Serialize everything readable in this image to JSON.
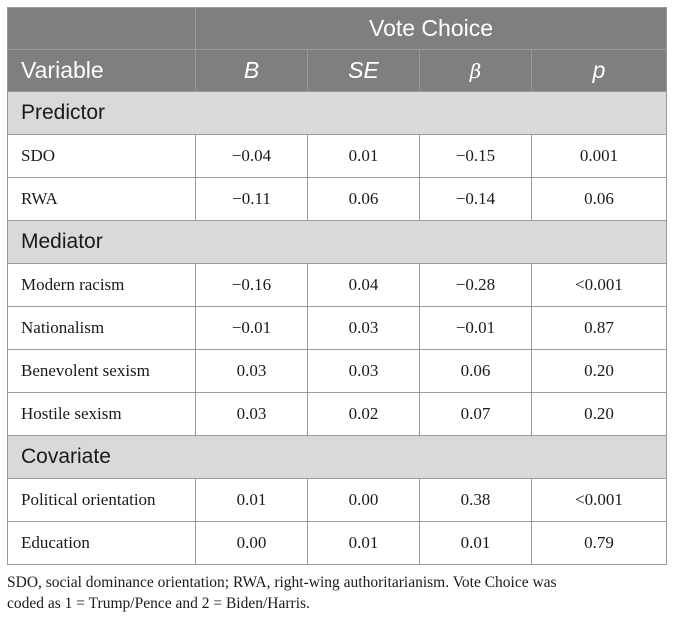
{
  "table": {
    "group_header": "Vote Choice",
    "columns": {
      "variable": "Variable",
      "b": "B",
      "se": "SE",
      "beta": "β",
      "p": "p"
    },
    "sections": [
      {
        "title": "Predictor",
        "rows": [
          {
            "label": "SDO",
            "b": "−0.04",
            "se": "0.01",
            "beta": "−0.15",
            "p": "0.001"
          },
          {
            "label": "RWA",
            "b": "−0.11",
            "se": "0.06",
            "beta": "−0.14",
            "p": "0.06"
          }
        ]
      },
      {
        "title": "Mediator",
        "rows": [
          {
            "label": "Modern racism",
            "b": "−0.16",
            "se": "0.04",
            "beta": "−0.28",
            "p": "<0.001"
          },
          {
            "label": "Nationalism",
            "b": "−0.01",
            "se": "0.03",
            "beta": "−0.01",
            "p": "0.87"
          },
          {
            "label": "Benevolent sexism",
            "b": "0.03",
            "se": "0.03",
            "beta": "0.06",
            "p": "0.20"
          },
          {
            "label": "Hostile sexism",
            "b": "0.03",
            "se": "0.02",
            "beta": "0.07",
            "p": "0.20"
          }
        ]
      },
      {
        "title": "Covariate",
        "rows": [
          {
            "label": "Political orientation",
            "b": "0.01",
            "se": "0.00",
            "beta": "0.38",
            "p": "<0.001"
          },
          {
            "label": "Education",
            "b": "0.00",
            "se": "0.01",
            "beta": "0.01",
            "p": "0.79"
          }
        ]
      }
    ]
  },
  "footnote": {
    "line1": "SDO, social dominance orientation; RWA, right-wing authoritarianism. Vote Choice was",
    "line2": "coded as 1 = Trump/Pence and 2 = Biden/Harris."
  }
}
